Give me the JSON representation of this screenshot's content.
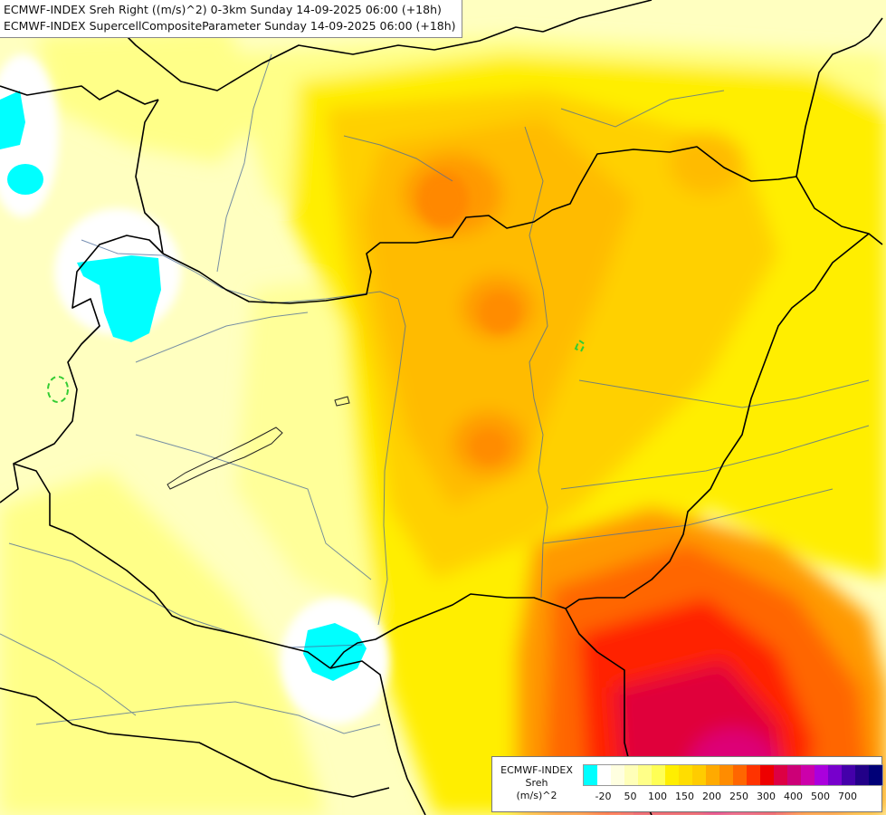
{
  "title": {
    "line1": "ECMWF-INDEX Sreh Right ((m/s)^2) 0-3km Sunday 14-09-2025 06:00 (+18h)",
    "line2": "ECMWF-INDEX SupercellCompositeParameter Sunday 14-09-2025 06:00 (+18h)"
  },
  "legend": {
    "model": "ECMWF-INDEX",
    "parameter": "Sreh",
    "unit": "(m/s)^2",
    "colors": [
      "#00ffff",
      "#ffffff",
      "#ffffe0",
      "#ffffb8",
      "#ffff88",
      "#ffff55",
      "#ffee00",
      "#ffdd00",
      "#ffcc00",
      "#ffaa00",
      "#ff8c00",
      "#ff6600",
      "#ff3300",
      "#ee0000",
      "#dd0044",
      "#cc0077",
      "#cc00aa",
      "#aa00dd",
      "#7700cc",
      "#4400aa",
      "#220088",
      "#000077"
    ],
    "ticks": [
      "-20",
      "50",
      "100",
      "150",
      "200",
      "250",
      "300",
      "400",
      "500",
      "700"
    ]
  },
  "map": {
    "fill_colors": {
      "pale": "#ffffc0",
      "light_yellow": "#ffff88",
      "yellow": "#ffee00",
      "gold": "#ffd000",
      "orange_light": "#ffbb00",
      "orange": "#ff9900",
      "dark_orange": "#ff6600",
      "red": "#ff2200",
      "crimson": "#e0003a",
      "magenta": "#dd0077",
      "purple": "#cc00cc",
      "cyan": "#00ffff",
      "white": "#ffffff",
      "scp_contour": "#33cc33"
    }
  }
}
